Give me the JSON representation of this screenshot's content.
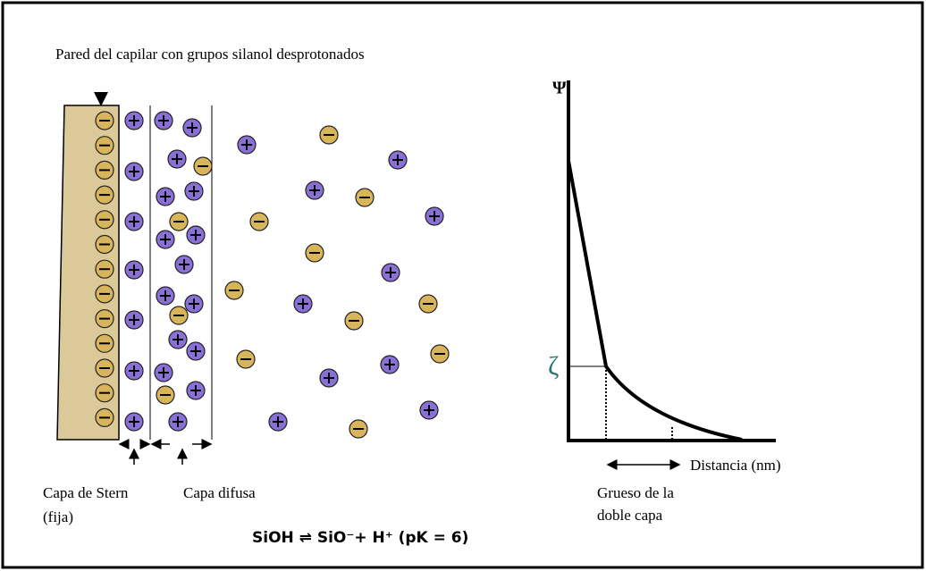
{
  "header": {
    "title": "Pared del capilar con grupos silanol desprotonados"
  },
  "left_labels": {
    "stern_line1": "Capa de Stern",
    "stern_line2": "(fija)",
    "diffuse": "Capa difusa"
  },
  "equation": "SiOH ⇌ SiO⁻+ H⁺ (pK = 6)",
  "graph": {
    "y_label": "Ψ",
    "zeta_label": "ζ",
    "x_label": "Distancia (nm)",
    "thickness_line1": "Grueso de la",
    "thickness_line2": "doble capa"
  }
}
